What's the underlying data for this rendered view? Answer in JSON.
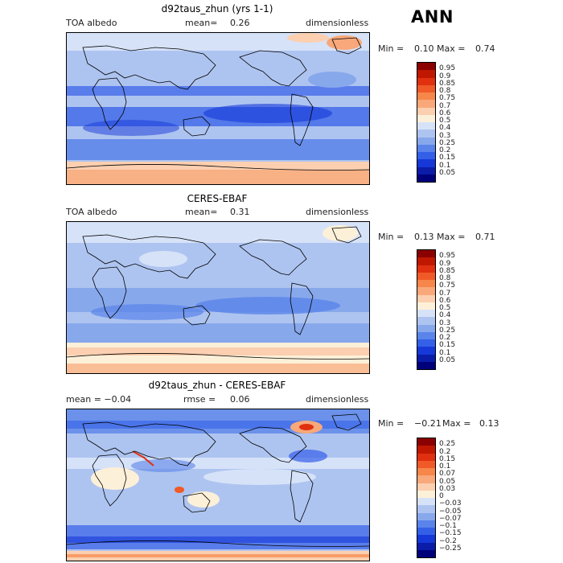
{
  "season": "ANN",
  "panels": [
    {
      "id": "model",
      "title": "d92taus_zhun (yrs 1-1)",
      "left_label": "TOA albedo",
      "center_key": "mean=",
      "center_value": "0.26",
      "units": "dimensionless",
      "min_label": "Min =",
      "min_value": "0.10",
      "max_label": "Max =",
      "max_value": "0.74",
      "colorbar_levels": [
        "0.95",
        "0.9",
        "0.85",
        "0.8",
        "0.75",
        "0.7",
        "0.6",
        "0.5",
        "0.4",
        "0.3",
        "0.25",
        "0.2",
        "0.15",
        "0.1",
        "0.05"
      ],
      "colorbar_colors": [
        "#8b0000",
        "#c01800",
        "#e03010",
        "#f05a28",
        "#f6864a",
        "#f8a87a",
        "#fbcfb0",
        "#fdf0d8",
        "#d6e2f8",
        "#aec4f0",
        "#88a8ec",
        "#5a84ea",
        "#3460e8",
        "#1638d8",
        "#0a1ca8",
        "#00007a"
      ]
    },
    {
      "id": "obs",
      "title": "CERES-EBAF",
      "left_label": "TOA albedo",
      "center_key": "mean=",
      "center_value": "0.31",
      "units": "dimensionless",
      "min_label": "Min =",
      "min_value": "0.13",
      "max_label": "Max =",
      "max_value": "0.71",
      "colorbar_levels": [
        "0.95",
        "0.9",
        "0.85",
        "0.8",
        "0.75",
        "0.7",
        "0.6",
        "0.5",
        "0.4",
        "0.3",
        "0.25",
        "0.2",
        "0.15",
        "0.1",
        "0.05"
      ],
      "colorbar_colors": [
        "#8b0000",
        "#c01800",
        "#e03010",
        "#f05a28",
        "#f6864a",
        "#f8a87a",
        "#fbcfb0",
        "#fdf0d8",
        "#d6e2f8",
        "#aec4f0",
        "#88a8ec",
        "#5a84ea",
        "#3460e8",
        "#1638d8",
        "#0a1ca8",
        "#00007a"
      ]
    },
    {
      "id": "diff",
      "title": "d92taus_zhun - CERES-EBAF",
      "left_label": "mean =  −0.04",
      "center_key": "rmse =",
      "center_value": "0.06",
      "units": "dimensionless",
      "min_label": "Min =",
      "min_value": "−0.21",
      "max_label": "Max =",
      "max_value": "0.13",
      "colorbar_levels": [
        "0.25",
        "0.2",
        "0.15",
        "0.1",
        "0.07",
        "0.05",
        "0.03",
        "0",
        "−0.03",
        "−0.05",
        "−0.07",
        "−0.1",
        "−0.15",
        "−0.2",
        "−0.25"
      ],
      "colorbar_colors": [
        "#8b0000",
        "#c01800",
        "#e03010",
        "#f05a28",
        "#f6864a",
        "#f8a87a",
        "#fbcfb0",
        "#fdf0d8",
        "#d6e2f8",
        "#aec4f0",
        "#88a8ec",
        "#5a84ea",
        "#3460e8",
        "#1638d8",
        "#0a1ca8",
        "#00007a"
      ]
    }
  ]
}
